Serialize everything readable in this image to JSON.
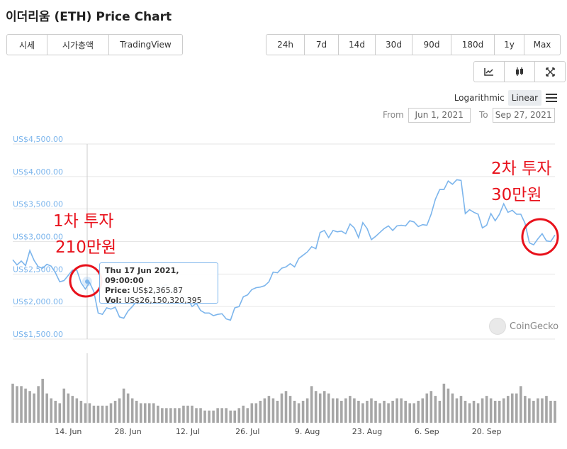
{
  "page": {
    "title": "이더리움 (ETH) Price Chart"
  },
  "tabs": [
    {
      "label": "시세",
      "active": true
    },
    {
      "label": "시가총액",
      "active": false
    },
    {
      "label": "TradingView",
      "active": false
    }
  ],
  "ranges": [
    {
      "label": "24h",
      "active": false
    },
    {
      "label": "7d",
      "active": false
    },
    {
      "label": "14d",
      "active": false
    },
    {
      "label": "30d",
      "active": false
    },
    {
      "label": "90d",
      "active": true
    },
    {
      "label": "180d",
      "active": false
    },
    {
      "label": "1y",
      "active": false
    },
    {
      "label": "Max",
      "active": false
    }
  ],
  "tools": [
    {
      "icon": "line-chart-icon",
      "active": true
    },
    {
      "icon": "candlestick-icon",
      "active": false
    },
    {
      "icon": "expand-icon",
      "active": false
    }
  ],
  "scale": {
    "log_label": "Logarithmic",
    "linear_label": "Linear",
    "active": "Linear"
  },
  "date_range": {
    "from_label": "From",
    "from": "Jun 1, 2021",
    "to_label": "To",
    "to": "Sep 27, 2021"
  },
  "tooltip": {
    "date": "Thu 17 Jun 2021, 09:00:00",
    "price_label": "Price:",
    "price": "US$2,365.87",
    "vol_label": "Vol:",
    "vol": "US$26,150,320,395"
  },
  "annotations": [
    {
      "line1": "1차 투자",
      "line2": "210만원"
    },
    {
      "line1": "2차 투자",
      "line2": "30만원"
    }
  ],
  "watermark": "CoinGecko",
  "colors": {
    "line": "#7cb5ec",
    "volume": "#a6a6a6",
    "annotation": "#e8111b",
    "grid": "#e6e6e6"
  },
  "chart_data": {
    "type": "line",
    "ylim": [
      1500,
      4500
    ],
    "y_ticks": [
      {
        "value": 1500,
        "label": "US$1,500.00"
      },
      {
        "value": 2000,
        "label": "US$2,000.00"
      },
      {
        "value": 2500,
        "label": "US$2,500.00"
      },
      {
        "value": 3000,
        "label": "US$3,000.00"
      },
      {
        "value": 3500,
        "label": "US$3,500.00"
      },
      {
        "value": 4000,
        "label": "US$4,000.00"
      },
      {
        "value": 4500,
        "label": "US$4,500.00"
      }
    ],
    "x_ticks": [
      {
        "day": 13,
        "label": "14. Jun"
      },
      {
        "day": 27,
        "label": "28. Jun"
      },
      {
        "day": 41,
        "label": "12. Jul"
      },
      {
        "day": 55,
        "label": "26. Jul"
      },
      {
        "day": 69,
        "label": "9. Aug"
      },
      {
        "day": 83,
        "label": "23. Aug"
      },
      {
        "day": 97,
        "label": "6. Sep"
      },
      {
        "day": 111,
        "label": "20. Sep"
      }
    ],
    "series": [
      {
        "values": [
          2720,
          2640,
          2700,
          2630,
          2860,
          2710,
          2610,
          2590,
          2650,
          2620,
          2520,
          2380,
          2400,
          2480,
          2560,
          2560,
          2365,
          2270,
          2370,
          2230,
          1900,
          1880,
          1980,
          1960,
          1990,
          1840,
          1820,
          1930,
          2000,
          2080,
          2120,
          2110,
          2150,
          2210,
          2220,
          2310,
          2340,
          2220,
          2270,
          2200,
          2150,
          2120,
          2000,
          2050,
          1940,
          1900,
          1900,
          1860,
          1880,
          1890,
          1810,
          1790,
          1980,
          2000,
          2150,
          2180,
          2260,
          2290,
          2300,
          2320,
          2380,
          2530,
          2520,
          2590,
          2610,
          2660,
          2610,
          2740,
          2790,
          2840,
          2920,
          2890,
          3140,
          3170,
          3060,
          3170,
          3150,
          3160,
          3120,
          3270,
          3210,
          3060,
          3290,
          3200,
          3030,
          3080,
          3140,
          3200,
          3240,
          3170,
          3240,
          3250,
          3240,
          3320,
          3300,
          3230,
          3260,
          3250,
          3420,
          3650,
          3800,
          3800,
          3930,
          3880,
          3950,
          3940,
          3430,
          3490,
          3450,
          3420,
          3210,
          3250,
          3430,
          3320,
          3420,
          3580,
          3450,
          3480,
          3420,
          3420,
          3280,
          2980,
          2950,
          3040,
          3120,
          3010,
          3000,
          3100
        ],
        "volume": [
          16,
          15,
          15,
          14,
          13,
          12,
          15,
          18,
          12,
          10,
          9,
          8,
          14,
          12,
          11,
          10,
          9,
          8,
          8,
          7,
          7,
          7,
          7,
          8,
          9,
          10,
          14,
          12,
          10,
          9,
          8,
          8,
          8,
          8,
          7,
          6,
          6,
          6,
          6,
          6,
          7,
          7,
          7,
          6,
          6,
          5,
          5,
          5,
          6,
          6,
          6,
          5,
          5,
          6,
          7,
          6,
          8,
          8,
          9,
          10,
          11,
          10,
          9,
          12,
          13,
          11,
          9,
          8,
          9,
          10,
          15,
          13,
          12,
          13,
          12,
          10,
          10,
          9,
          10,
          11,
          10,
          9,
          8,
          9,
          10,
          9,
          8,
          9,
          8,
          9,
          10,
          10,
          9,
          8,
          8,
          9,
          10,
          12,
          13,
          11,
          9,
          16,
          14,
          12,
          10,
          11,
          9,
          8,
          9,
          8,
          10,
          11,
          10,
          9,
          9,
          10,
          11,
          12,
          12,
          15,
          11,
          10,
          9,
          10,
          10,
          11,
          9,
          9
        ]
      }
    ]
  }
}
